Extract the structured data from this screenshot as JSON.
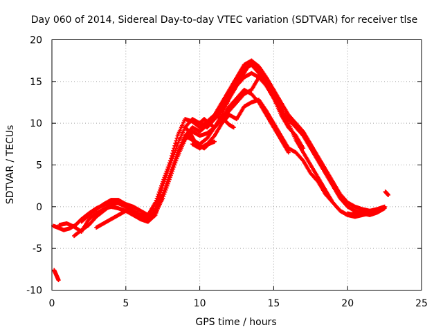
{
  "chart_data": {
    "type": "scatter",
    "title": "Day 060 of 2014, Sidereal Day-to-day VTEC variation (SDTVAR) for receiver tlse",
    "xlabel": "GPS time / hours",
    "ylabel": "SDTVAR / TECUs",
    "xlim": [
      0,
      25
    ],
    "ylim": [
      -10,
      20
    ],
    "xticks": [
      0,
      5,
      10,
      15,
      20,
      25
    ],
    "yticks": [
      -10,
      -5,
      0,
      5,
      10,
      15,
      20
    ],
    "grid": true,
    "marker": "+",
    "color": "#ff0000",
    "series": [
      {
        "name": "track-a",
        "x": [
          0.1,
          0.4,
          0.8,
          1.2,
          1.6,
          2.0,
          2.5,
          3.0,
          3.5,
          4.0,
          4.5,
          5.0,
          5.5,
          6.0,
          6.5,
          7.0,
          7.5,
          8.0,
          8.5,
          9.0,
          9.5,
          10.0,
          10.5,
          11.0,
          11.5,
          12.0,
          12.5,
          13.0,
          13.5,
          14.0,
          14.5,
          15.0,
          15.5,
          16.0
        ],
        "y": [
          -2.3,
          -2.5,
          -2.8,
          -2.6,
          -2.2,
          -1.5,
          -0.8,
          -0.2,
          0.2,
          0.5,
          0.4,
          0.0,
          -0.5,
          -1.0,
          -1.3,
          -0.5,
          1.5,
          4.0,
          6.5,
          8.5,
          8.0,
          7.5,
          8.2,
          9.5,
          10.5,
          12.0,
          13.0,
          14.0,
          13.5,
          12.5,
          11.0,
          9.5,
          8.0,
          6.5
        ]
      },
      {
        "name": "track-b",
        "x": [
          0.5,
          1.0,
          1.5,
          2.0,
          2.5,
          3.0,
          3.5,
          4.0,
          4.5,
          5.0,
          5.5,
          6.0,
          6.5,
          7.0,
          7.5,
          8.0,
          8.5,
          9.0,
          9.5,
          10.0,
          10.5,
          11.0,
          11.5,
          12.0,
          12.5,
          13.0,
          13.5,
          14.0,
          14.5,
          15.0,
          15.5,
          16.0,
          16.5
        ],
        "y": [
          -2.2,
          -2.0,
          -2.4,
          -3.0,
          -1.5,
          -0.8,
          -0.3,
          0.0,
          -0.2,
          -0.5,
          -1.0,
          -1.5,
          -1.8,
          -0.2,
          2.5,
          5.0,
          7.5,
          9.5,
          10.5,
          10.0,
          9.5,
          10.5,
          11.5,
          13.0,
          14.5,
          15.5,
          16.0,
          15.5,
          14.5,
          13.0,
          11.0,
          9.5,
          8.5
        ]
      },
      {
        "name": "track-c",
        "x": [
          1.5,
          2.0,
          2.5,
          3.0,
          3.5,
          4.0,
          4.5,
          5.0,
          5.5,
          6.0,
          6.5,
          7.0,
          7.5,
          8.0,
          8.5,
          9.0,
          9.5,
          10.0,
          10.5,
          11.0,
          11.5,
          12.0,
          12.5,
          13.0,
          13.5,
          14.0,
          14.5,
          15.0,
          15.5,
          16.0,
          16.5,
          17.0
        ],
        "y": [
          -3.5,
          -2.8,
          -2.2,
          -1.2,
          -0.5,
          0.2,
          0.5,
          0.3,
          0.0,
          -0.5,
          -1.0,
          0.5,
          3.0,
          5.5,
          8.5,
          10.5,
          10.2,
          9.5,
          10.2,
          11.0,
          12.5,
          14.0,
          15.5,
          17.0,
          17.5,
          16.5,
          15.0,
          13.5,
          11.5,
          9.5,
          8.5,
          7.0
        ]
      },
      {
        "name": "track-d",
        "x": [
          2.0,
          2.5,
          3.0,
          3.5,
          4.0,
          4.5,
          5.0,
          5.5,
          6.0,
          6.5,
          7.0,
          7.5,
          8.0,
          8.5,
          9.0,
          9.5,
          10.0,
          10.5,
          11.0,
          11.5,
          12.0,
          12.5,
          13.0,
          13.5,
          14.0,
          14.5,
          15.0,
          15.5,
          16.0,
          16.5,
          17.0,
          17.5,
          18.0,
          18.5,
          19.0,
          19.5,
          20.0,
          20.5,
          21.0,
          21.5,
          22.0,
          22.5
        ],
        "y": [
          -1.8,
          -1.0,
          -0.3,
          0.3,
          0.8,
          0.8,
          0.3,
          -0.5,
          -1.2,
          -1.5,
          -0.8,
          1.0,
          3.5,
          6.0,
          8.0,
          9.0,
          8.5,
          8.8,
          9.5,
          11.0,
          13.0,
          14.5,
          16.0,
          17.5,
          16.8,
          15.5,
          14.0,
          12.0,
          10.0,
          8.0,
          6.5,
          5.0,
          3.5,
          2.0,
          0.5,
          -0.5,
          -1.0,
          -0.8,
          -0.5,
          -0.6,
          -0.3,
          0.0
        ]
      },
      {
        "name": "track-e",
        "x": [
          3.0,
          3.5,
          4.0,
          4.5,
          5.0,
          5.5,
          6.0,
          6.5,
          7.0,
          7.5,
          8.0,
          8.5,
          9.0,
          9.5,
          10.0,
          10.5,
          11.0,
          11.5,
          12.0,
          12.5,
          13.0,
          13.5,
          14.0,
          14.5,
          15.0,
          15.5,
          16.0,
          16.5,
          17.0,
          17.5,
          18.0,
          18.5,
          19.0,
          19.5,
          20.0,
          20.5,
          21.0,
          21.5,
          22.0,
          22.5
        ],
        "y": [
          -2.5,
          -2.0,
          -1.5,
          -1.0,
          -0.5,
          -0.8,
          -1.5,
          -1.8,
          -1.0,
          1.5,
          4.0,
          6.5,
          8.5,
          9.5,
          9.0,
          9.8,
          10.5,
          12.0,
          13.5,
          15.0,
          16.5,
          17.0,
          16.0,
          14.5,
          13.0,
          11.5,
          10.5,
          9.5,
          8.5,
          7.0,
          5.5,
          4.0,
          2.5,
          1.0,
          0.0,
          -0.5,
          -0.8,
          -1.0,
          -0.7,
          -0.2
        ]
      },
      {
        "name": "track-f",
        "x": [
          11.0,
          11.5,
          12.0,
          12.5,
          13.0,
          13.5,
          14.0,
          14.5,
          15.0,
          15.5,
          16.0,
          16.5,
          17.0,
          17.5,
          18.0,
          18.5,
          19.0,
          19.5,
          20.0,
          20.5,
          21.0,
          21.5,
          22.0,
          22.5
        ],
        "y": [
          11.0,
          10.5,
          11.5,
          12.5,
          13.5,
          14.0,
          15.5,
          15.0,
          14.0,
          12.5,
          11.0,
          10.0,
          9.0,
          7.5,
          6.0,
          4.5,
          3.0,
          1.5,
          0.5,
          0.0,
          -0.3,
          -0.5,
          -0.4,
          -0.1
        ]
      },
      {
        "name": "track-g",
        "x": [
          9.5,
          10.0,
          10.5,
          11.0,
          11.5,
          12.0,
          12.5,
          13.0,
          13.5,
          14.0,
          14.5,
          15.0,
          15.5,
          16.0,
          16.5,
          17.0,
          17.5,
          18.0,
          18.5,
          19.0,
          19.5,
          20.0,
          20.5,
          21.0,
          21.5,
          22.0
        ],
        "y": [
          7.5,
          7.0,
          7.5,
          8.5,
          10.0,
          11.0,
          10.5,
          12.0,
          12.5,
          12.8,
          11.5,
          10.0,
          8.5,
          7.0,
          6.5,
          5.5,
          4.0,
          3.0,
          1.5,
          0.5,
          -0.5,
          -1.0,
          -1.2,
          -1.0,
          -0.8,
          -0.5
        ]
      },
      {
        "name": "track-h",
        "x": [
          10.0,
          10.3,
          10.6,
          11.0,
          11.3,
          11.6,
          12.0,
          12.3
        ],
        "y": [
          10.0,
          10.5,
          10.0,
          9.5,
          10.2,
          10.5,
          9.8,
          9.5
        ]
      },
      {
        "name": "track-i",
        "x": [
          9.0,
          9.3,
          9.6,
          10.0,
          10.3,
          10.6,
          11.0
        ],
        "y": [
          9.5,
          9.0,
          8.0,
          7.3,
          7.0,
          7.5,
          7.8
        ]
      },
      {
        "name": "track-j",
        "x": [
          0.15,
          0.25,
          0.35,
          0.45
        ],
        "y": [
          -7.6,
          -8.0,
          -8.4,
          -8.8
        ]
      },
      {
        "name": "track-k",
        "x": [
          20.0,
          20.5,
          21.0,
          21.5,
          22.0,
          22.5
        ],
        "y": [
          -0.8,
          -1.0,
          -0.6,
          -0.5,
          -0.3,
          0.0
        ]
      },
      {
        "name": "track-l",
        "x": [
          22.55,
          22.65,
          22.75
        ],
        "y": [
          1.8,
          1.6,
          1.4
        ]
      }
    ]
  }
}
